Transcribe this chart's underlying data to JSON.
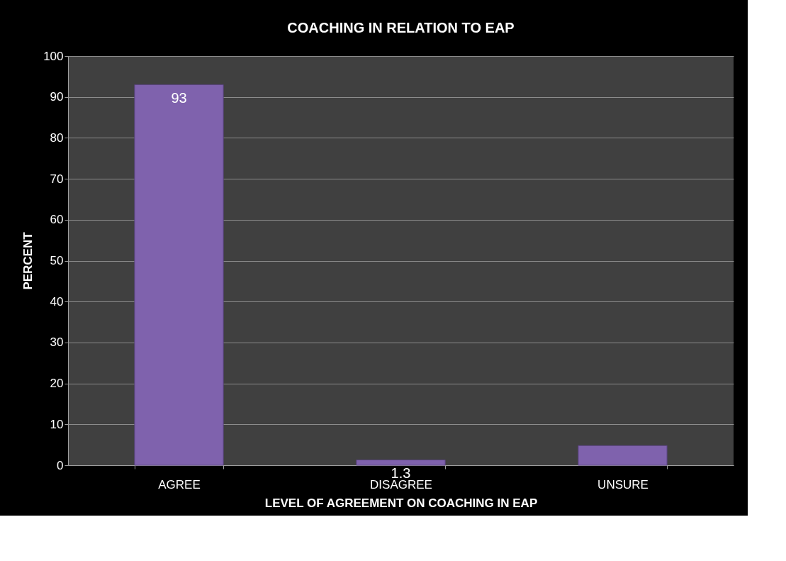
{
  "chart_data": {
    "type": "bar",
    "title": "COACHING IN RELATION TO EAP",
    "xlabel": "LEVEL OF AGREEMENT ON COACHING IN EAP",
    "ylabel": "PERCENT",
    "categories": [
      "AGREE",
      "DISAGREE",
      "UNSURE"
    ],
    "values": [
      93,
      1.3,
      4.8
    ],
    "value_labels": [
      "93",
      "1.3",
      null
    ],
    "color": "#7f62ad",
    "ylim": [
      0,
      100
    ],
    "yticks": [
      0,
      10,
      20,
      30,
      40,
      50,
      60,
      70,
      80,
      90,
      100
    ],
    "grid": "y"
  }
}
